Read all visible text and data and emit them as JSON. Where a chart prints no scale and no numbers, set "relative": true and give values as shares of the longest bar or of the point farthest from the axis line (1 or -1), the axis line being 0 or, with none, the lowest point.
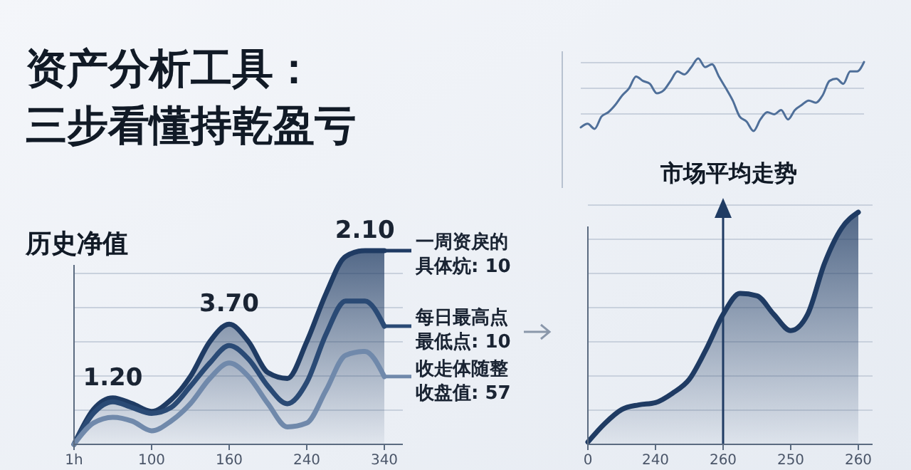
{
  "chart_data": [
    {
      "type": "line",
      "relative": true,
      "title": "资产分析工具：三步看懂持乾盈亏",
      "subtitle": "历史净值",
      "categories": [
        "1h",
        null,
        null,
        null,
        "100",
        null,
        null,
        null,
        "160",
        null,
        null,
        null,
        "240",
        null,
        null,
        null,
        "340"
      ],
      "grid": true,
      "legend": "right",
      "series": [
        {
          "name": "一周资戾的具体炕: 10",
          "type": "area",
          "color": "#1f3b63",
          "values": [
            0,
            0.18,
            0.24,
            0.21,
            0.17,
            0.23,
            0.35,
            0.53,
            0.62,
            0.53,
            0.37,
            0.34,
            0.53,
            0.78,
            0.97,
            1.0,
            1.0
          ]
        },
        {
          "name": "每日最高点最低点: 10",
          "color": "#2a4a75",
          "values": [
            0,
            0.16,
            0.22,
            0.19,
            0.16,
            0.19,
            0.3,
            0.42,
            0.51,
            0.44,
            0.3,
            0.21,
            0.32,
            0.57,
            0.74,
            0.74,
            0.61
          ]
        },
        {
          "name": "收歨体随整收盘值: 57",
          "color": "#7089ab",
          "values": [
            0,
            0.11,
            0.14,
            0.12,
            0.07,
            0.12,
            0.21,
            0.34,
            0.42,
            0.35,
            0.21,
            0.09,
            0.11,
            0.28,
            0.46,
            0.48,
            0.35
          ]
        }
      ],
      "annotations": [
        {
          "text": "1.20",
          "y": 0.24
        },
        {
          "text": "3.70",
          "y": 0.62
        },
        {
          "text": "2.10",
          "y": 1.0
        }
      ]
    },
    {
      "type": "line",
      "relative": true,
      "grid": true,
      "categories": [
        null,
        null,
        null,
        null,
        null,
        null,
        null,
        null,
        null,
        null,
        null,
        null,
        null,
        null,
        null,
        null,
        null,
        null,
        null,
        null,
        null,
        null,
        null,
        null,
        null,
        null,
        null,
        null,
        null,
        null,
        null,
        null,
        null,
        null,
        null,
        null,
        null,
        null,
        null,
        null,
        null,
        null
      ],
      "series": [
        {
          "color": "#4f6f99",
          "values": [
            0.05,
            0.1,
            0.03,
            0.2,
            0.26,
            0.36,
            0.49,
            0.59,
            0.75,
            0.69,
            0.65,
            0.52,
            0.56,
            0.69,
            0.82,
            0.78,
            0.88,
            1,
            0.88,
            0.92,
            0.75,
            0.59,
            0.42,
            0.2,
            0.13,
            0,
            0.16,
            0.26,
            0.23,
            0.29,
            0.16,
            0.29,
            0.36,
            0.42,
            0.39,
            0.49,
            0.69,
            0.72,
            0.65,
            0.82,
            0.82,
            0.95
          ]
        }
      ]
    },
    {
      "type": "area",
      "relative": true,
      "title": "市场平均走势",
      "categories": [
        "0",
        null,
        null,
        null,
        "240",
        null,
        null,
        null,
        "260",
        null,
        null,
        null,
        "250",
        null,
        null,
        null,
        "260"
      ],
      "grid": true,
      "series": [
        {
          "color": "#1f3b63",
          "values": [
            0.01,
            0.09,
            0.15,
            0.17,
            0.18,
            0.22,
            0.28,
            0.41,
            0.56,
            0.65,
            0.64,
            0.56,
            0.49,
            0.56,
            0.78,
            0.93,
            1.0
          ]
        }
      ]
    }
  ]
}
